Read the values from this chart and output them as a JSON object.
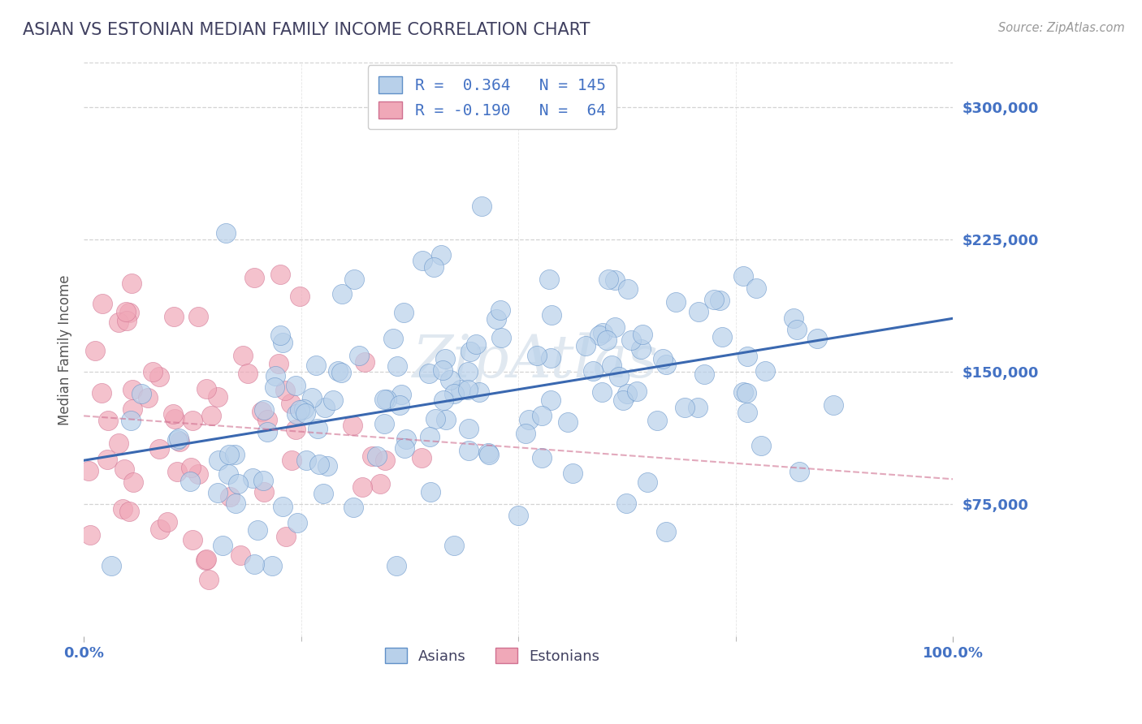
{
  "title": "ASIAN VS ESTONIAN MEDIAN FAMILY INCOME CORRELATION CHART",
  "source": "Source: ZipAtlas.com",
  "ylabel": "Median Family Income",
  "xlim": [
    0.0,
    1.0
  ],
  "ylim": [
    0,
    325000
  ],
  "yticks": [
    75000,
    150000,
    225000,
    300000
  ],
  "ytick_labels": [
    "$75,000",
    "$150,000",
    "$225,000",
    "$300,000"
  ],
  "xtick_labels": [
    "0.0%",
    "100.0%"
  ],
  "asian_R": 0.364,
  "asian_N": 145,
  "estonian_R": -0.19,
  "estonian_N": 64,
  "asian_color": "#b8d0ea",
  "estonian_color": "#f0a8b8",
  "asian_edge_color": "#6090c8",
  "estonian_edge_color": "#d07090",
  "asian_line_color": "#3a68b0",
  "estonian_line_color": "#d07090",
  "title_color": "#404060",
  "source_color": "#999999",
  "axis_label_color": "#555555",
  "tick_label_color": "#4472c4",
  "legend_text_color": "#4472c4",
  "background_color": "#ffffff",
  "grid_color": "#cccccc",
  "watermark_color": "#e0e8f0"
}
